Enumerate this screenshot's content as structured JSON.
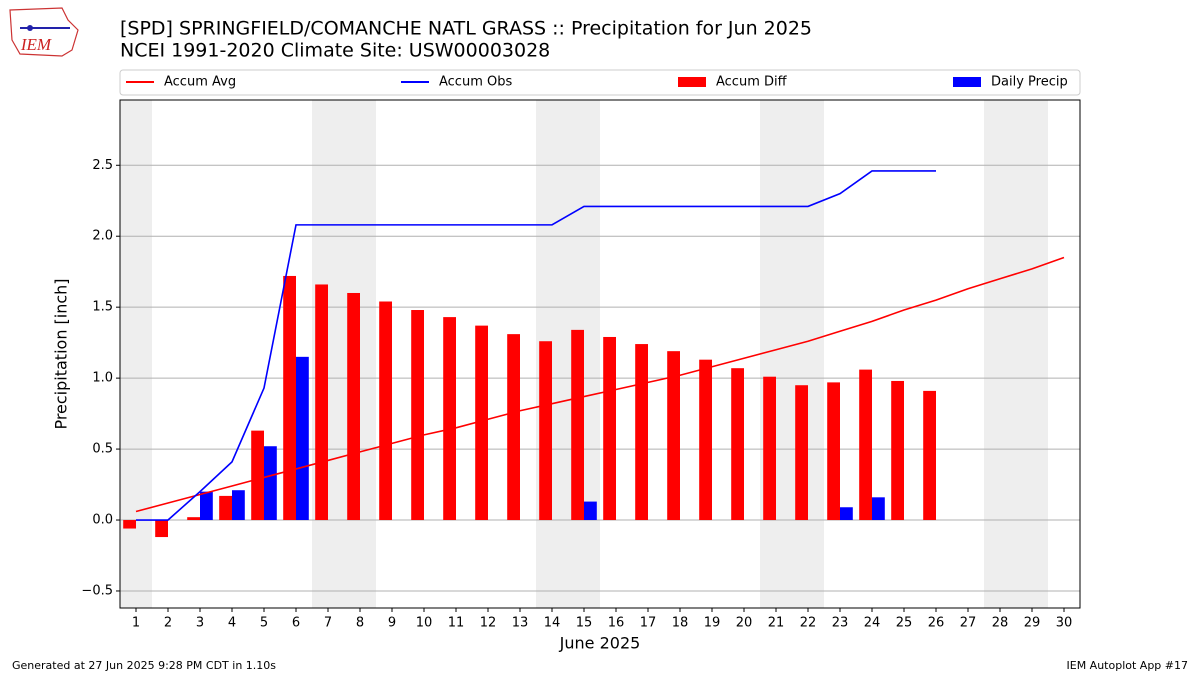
{
  "chart_data": {
    "type": "combo",
    "logo": "IEM",
    "title": "[SPD] SPRINGFIELD/COMANCHE NATL GRASS :: Precipitation for Jun 2025",
    "subtitle": "NCEI 1991-2020 Climate Site: USW00003028",
    "x_label": "June 2025",
    "y_label": "Precipitation [inch]",
    "footer_left": "Generated at 27 Jun 2025 9:28 PM CDT in 1.10s",
    "footer_right": "IEM Autoplot App #17",
    "x": [
      1,
      2,
      3,
      4,
      5,
      6,
      7,
      8,
      9,
      10,
      11,
      12,
      13,
      14,
      15,
      16,
      17,
      18,
      19,
      20,
      21,
      22,
      23,
      24,
      25,
      26,
      27,
      28,
      29,
      30
    ],
    "xlim": [
      0.5,
      30.5
    ],
    "xticks": [
      1,
      2,
      3,
      4,
      5,
      6,
      7,
      8,
      9,
      10,
      11,
      12,
      13,
      14,
      15,
      16,
      17,
      18,
      19,
      20,
      21,
      22,
      23,
      24,
      25,
      26,
      27,
      28,
      29,
      30
    ],
    "ylim": [
      -0.62,
      2.96
    ],
    "yticks": [
      {
        "value": -0.5,
        "label": "−0.5"
      },
      {
        "value": 0,
        "label": "0.0"
      },
      0.5,
      {
        "value": 1,
        "label": "1.0"
      },
      1.5,
      {
        "value": 2,
        "label": "2.0"
      },
      2.5
    ],
    "grid": true,
    "shaded_days": [
      1,
      7,
      8,
      14,
      15,
      21,
      22,
      28,
      29
    ],
    "series": [
      {
        "name": "Accum Avg",
        "color": "#ff0000",
        "kind": "line",
        "values": [
          0.06,
          0.12,
          0.18,
          0.24,
          0.3,
          0.36,
          0.42,
          0.48,
          0.54,
          0.6,
          0.65,
          0.71,
          0.77,
          0.82,
          0.87,
          0.92,
          0.97,
          1.02,
          1.08,
          1.14,
          1.2,
          1.26,
          1.33,
          1.4,
          1.48,
          1.55,
          1.63,
          1.7,
          1.77,
          1.85
        ]
      },
      {
        "name": "Accum Obs",
        "color": "#0000ff",
        "kind": "line",
        "values": [
          0,
          0,
          0.2,
          0.41,
          0.93,
          2.08,
          2.08,
          2.08,
          2.08,
          2.08,
          2.08,
          2.08,
          2.08,
          2.08,
          2.21,
          2.21,
          2.21,
          2.21,
          2.21,
          2.21,
          2.21,
          2.21,
          2.3,
          2.46,
          2.46,
          2.46,
          null,
          null,
          null,
          null
        ]
      },
      {
        "name": "Accum Diff",
        "color": "#ff0000",
        "kind": "bar",
        "offset": -0.2,
        "values": [
          -0.06,
          -0.12,
          0.02,
          0.17,
          0.63,
          1.72,
          1.66,
          1.6,
          1.54,
          1.48,
          1.43,
          1.37,
          1.31,
          1.26,
          1.34,
          1.29,
          1.24,
          1.19,
          1.13,
          1.07,
          1.01,
          0.95,
          0.97,
          1.06,
          0.98,
          0.91,
          null,
          null,
          null,
          null
        ]
      },
      {
        "name": "Daily Precip",
        "color": "#0000ff",
        "kind": "bar",
        "offset": 0.2,
        "values": [
          0,
          0,
          0.2,
          0.21,
          0.52,
          1.15,
          0,
          0,
          0,
          0,
          0,
          0,
          0,
          0,
          0.13,
          0,
          0,
          0,
          0,
          0,
          0,
          0,
          0.09,
          0.16,
          0,
          0,
          null,
          null,
          null,
          null
        ]
      }
    ]
  }
}
